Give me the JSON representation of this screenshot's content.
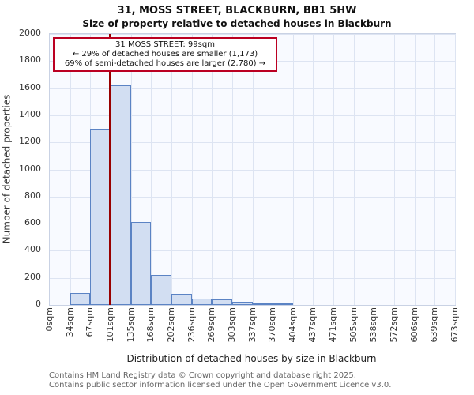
{
  "title": "31, MOSS STREET, BLACKBURN, BB1 5HW",
  "subtitle": "Size of property relative to detached houses in Blackburn",
  "chart_data": {
    "type": "bar",
    "title": "31, MOSS STREET, BLACKBURN, BB1 5HW",
    "subtitle": "Size of property relative to detached houses in Blackburn",
    "xlabel": "Distribution of detached houses by size in Blackburn",
    "ylabel": "Number of detached properties",
    "ylim": [
      0,
      2000
    ],
    "y_ticks": [
      0,
      200,
      400,
      600,
      800,
      1000,
      1200,
      1400,
      1600,
      1800,
      2000
    ],
    "x_ticks_sqm": [
      0,
      34,
      67,
      101,
      135,
      168,
      202,
      236,
      269,
      303,
      337,
      370,
      404,
      437,
      471,
      505,
      538,
      572,
      606,
      639,
      673
    ],
    "x_tick_labels": [
      "0sqm",
      "34sqm",
      "67sqm",
      "101sqm",
      "135sqm",
      "168sqm",
      "202sqm",
      "236sqm",
      "269sqm",
      "303sqm",
      "337sqm",
      "370sqm",
      "404sqm",
      "437sqm",
      "471sqm",
      "505sqm",
      "538sqm",
      "572sqm",
      "606sqm",
      "639sqm",
      "673sqm"
    ],
    "bin_values": [
      0,
      90,
      1300,
      1620,
      610,
      220,
      80,
      45,
      40,
      25,
      10,
      8,
      0,
      0,
      0,
      0,
      0,
      0,
      0,
      0
    ],
    "property_line_sqm": 99,
    "grid": true,
    "legend": "none",
    "annotation": {
      "line1": "31 MOSS STREET: 99sqm",
      "line2": "← 29% of detached houses are smaller (1,173)",
      "line3": "69% of semi-detached houses are larger (2,780) →"
    },
    "colors": {
      "bar_fill": "#d2def2",
      "bar_border": "#5b83c4",
      "property_line": "#990000",
      "annotation_border": "#bb0022",
      "grid": "#dde4f2",
      "plot_bg": "#f8faff"
    }
  },
  "footer": {
    "line1": "Contains HM Land Registry data © Crown copyright and database right 2025.",
    "line2": "Contains public sector information licensed under the Open Government Licence v3.0."
  }
}
